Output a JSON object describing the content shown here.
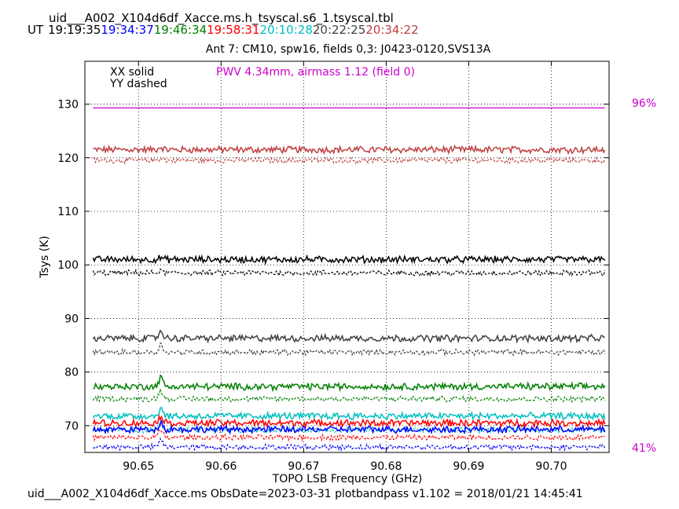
{
  "header": {
    "filename": "uid___A002_X104d6df_Xacce.ms.h_tsyscal.s6_1.tsyscal.tbl",
    "ut_label": "UT",
    "timestamps": [
      {
        "text": "19:19:35",
        "color": "#000000"
      },
      {
        "text": "19:34:37",
        "color": "#0000ff"
      },
      {
        "text": "19:46:34",
        "color": "#008000"
      },
      {
        "text": "19:58:31",
        "color": "#ff0000"
      },
      {
        "text": "20:10:28",
        "color": "#00bfbf"
      },
      {
        "text": "20:22:25",
        "color": "#404040"
      },
      {
        "text": "20:34:22",
        "color": "#c04040"
      }
    ]
  },
  "footer": "uid___A002_X104d6df_Xacce.ms  ObsDate=2023-03-31   plotbandpass v1.102 = 2018/01/21 14:45:41",
  "chart_data": {
    "type": "line",
    "title": "Ant 7: CM10,  spw16,  fields 0,3: J0423-0120,SVS13A",
    "xlabel": "TOPO LSB Frequency (GHz)",
    "ylabel": "Tsys (K)",
    "xlim": [
      90.6435,
      90.707
    ],
    "ylim": [
      65,
      138
    ],
    "x_ticks": [
      "90.65",
      "90.66",
      "90.67",
      "90.68",
      "90.69",
      "90.70"
    ],
    "y_ticks": [
      "70",
      "80",
      "90",
      "100",
      "110",
      "120",
      "130"
    ],
    "grid": true,
    "legend": [
      "XX solid",
      "YY dashed"
    ],
    "annotation": {
      "text": "PWV 4.34mm, airmass 1.12 (field 0)",
      "color": "#cc00cc"
    },
    "atm_transmission": {
      "color": "#cc00cc",
      "label_top": "96%",
      "label_bottom": "41%",
      "level": 96
    },
    "series": [
      {
        "color": "#c04040",
        "xx": 121.5,
        "yy": 119.5,
        "peak": 0.5
      },
      {
        "color": "#000000",
        "xx": 101.0,
        "yy": 98.5,
        "peak": 0.3
      },
      {
        "color": "#404040",
        "xx": 86.3,
        "yy": 83.7,
        "peak": 1.4
      },
      {
        "color": "#008000",
        "xx": 77.3,
        "yy": 75.0,
        "peak": 1.6
      },
      {
        "color": "#00bfbf",
        "xx": 71.8,
        "yy": 69.2,
        "peak": 1.5
      },
      {
        "color": "#ff0000",
        "xx": 70.5,
        "yy": 67.8,
        "peak": 1.3
      },
      {
        "color": "#0000ff",
        "xx": 69.3,
        "yy": 66.0,
        "peak": 1.3
      }
    ]
  }
}
